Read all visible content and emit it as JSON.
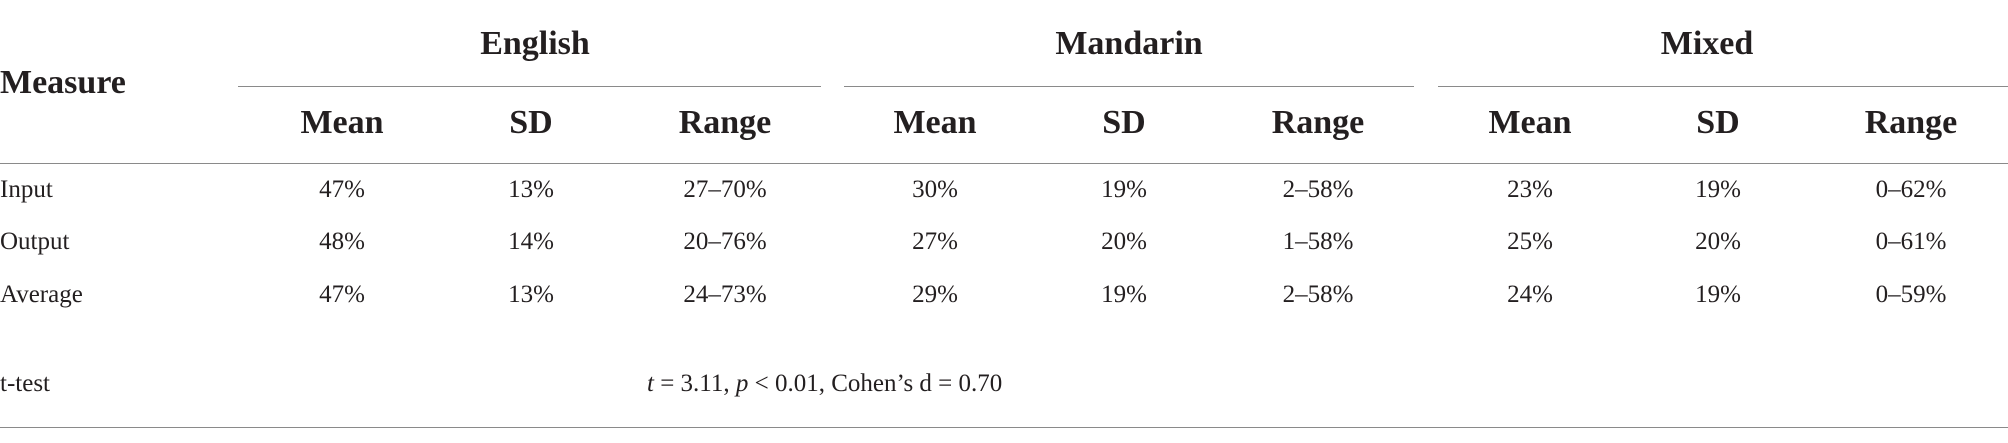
{
  "table": {
    "measure_header": "Measure",
    "groups": [
      "English",
      "Mandarin",
      "Mixed"
    ],
    "subheaders": [
      "Mean",
      "SD",
      "Range"
    ],
    "rows": [
      {
        "label": "Input",
        "cells": [
          "47%",
          "13%",
          "27–70%",
          "30%",
          "19%",
          "2–58%",
          "23%",
          "19%",
          "0–62%"
        ]
      },
      {
        "label": "Output",
        "cells": [
          "48%",
          "14%",
          "20–76%",
          "27%",
          "20%",
          "1–58%",
          "25%",
          "20%",
          "0–61%"
        ]
      },
      {
        "label": "Average",
        "cells": [
          "47%",
          "13%",
          "24–73%",
          "29%",
          "19%",
          "2–58%",
          "24%",
          "19%",
          "0–59%"
        ]
      }
    ],
    "ttest": {
      "label": "t-test",
      "t_symbol": "t",
      "t_part": " = 3.11, ",
      "p_symbol": "p",
      "p_part": " < 0.01, Cohen’s d = 0.70"
    }
  }
}
